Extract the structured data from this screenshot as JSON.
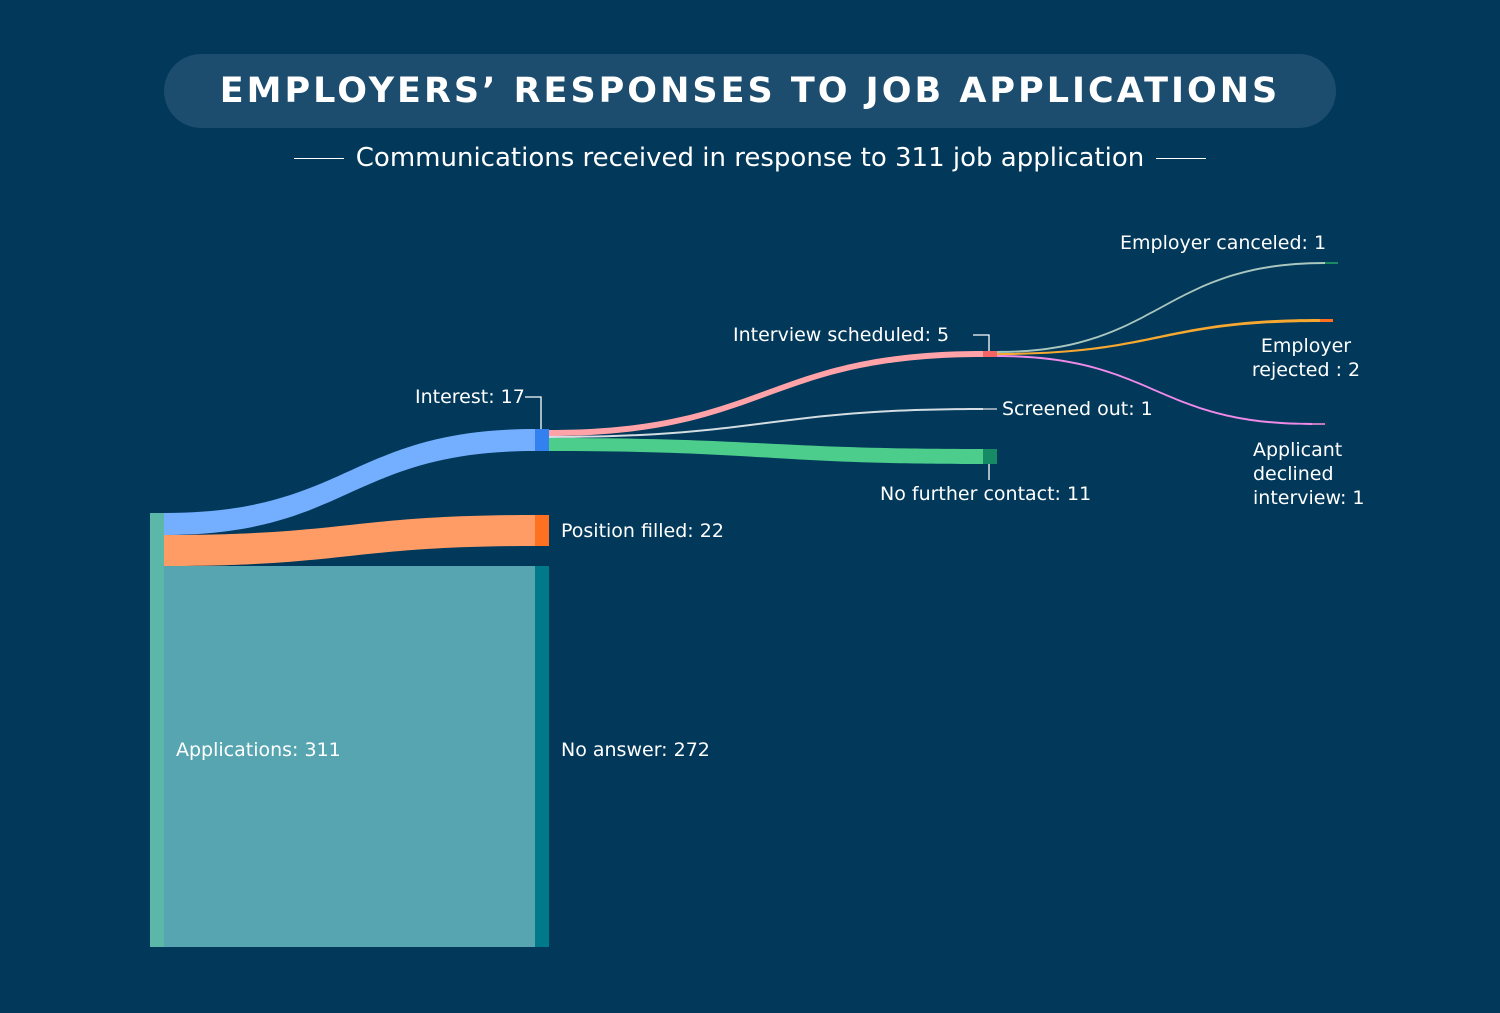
{
  "header": {
    "title": "EMPLOYERS’ RESPONSES TO JOB APPLICATIONS",
    "subtitle": "Communications received in response to 311 job application"
  },
  "chart_data": {
    "type": "sankey",
    "title": "EMPLOYERS’ RESPONSES TO JOB APPLICATIONS",
    "subtitle": "Communications received in response to 311 job application",
    "nodes": [
      {
        "id": "applications",
        "label": "Applications: 311",
        "value": 311,
        "color": "#5bb8a8"
      },
      {
        "id": "interest",
        "label": "Interest: 17",
        "value": 17,
        "color": "#3381f0"
      },
      {
        "id": "position_filled",
        "label": "Position filled: 22",
        "value": 22,
        "color": "#ff7020"
      },
      {
        "id": "no_answer",
        "label": "No answer: 272",
        "value": 272,
        "color": "#007a8a"
      },
      {
        "id": "interview",
        "label": "Interview scheduled: 5",
        "value": 5,
        "color": "#f46464"
      },
      {
        "id": "screened_out",
        "label": "Screened out: 1",
        "value": 1,
        "color": "#8fa3b0"
      },
      {
        "id": "no_further_contact",
        "label": "No further contact: 11",
        "value": 11,
        "color": "#168a64"
      },
      {
        "id": "employer_canceled",
        "label": "Employer canceled: 1",
        "value": 1,
        "color": "#1a8a60"
      },
      {
        "id": "employer_rejected",
        "label": "Employer rejected : 2",
        "value": 2,
        "color": "#ff7020"
      },
      {
        "id": "applicant_declined",
        "label": "Applicant declined interview: 1",
        "value": 1,
        "color": "#c07ab8"
      }
    ],
    "links": [
      {
        "source": "applications",
        "target": "interest",
        "value": 17,
        "color": "#74aefe"
      },
      {
        "source": "applications",
        "target": "position_filled",
        "value": 22,
        "color": "#ff9c66"
      },
      {
        "source": "applications",
        "target": "no_answer",
        "value": 272,
        "color": "#57a5b1"
      },
      {
        "source": "interest",
        "target": "interview",
        "value": 5,
        "color": "#ffa3a8"
      },
      {
        "source": "interest",
        "target": "screened_out",
        "value": 1,
        "color": "#d4dde2"
      },
      {
        "source": "interest",
        "target": "no_further_contact",
        "value": 11,
        "color": "#4ccd8c"
      },
      {
        "source": "interview",
        "target": "employer_canceled",
        "value": 1,
        "color": "#a9c7bf"
      },
      {
        "source": "interview",
        "target": "employer_rejected",
        "value": 2,
        "color": "#f7a830"
      },
      {
        "source": "interview",
        "target": "applicant_declined",
        "value": 1,
        "color": "#f08ae8"
      }
    ]
  }
}
